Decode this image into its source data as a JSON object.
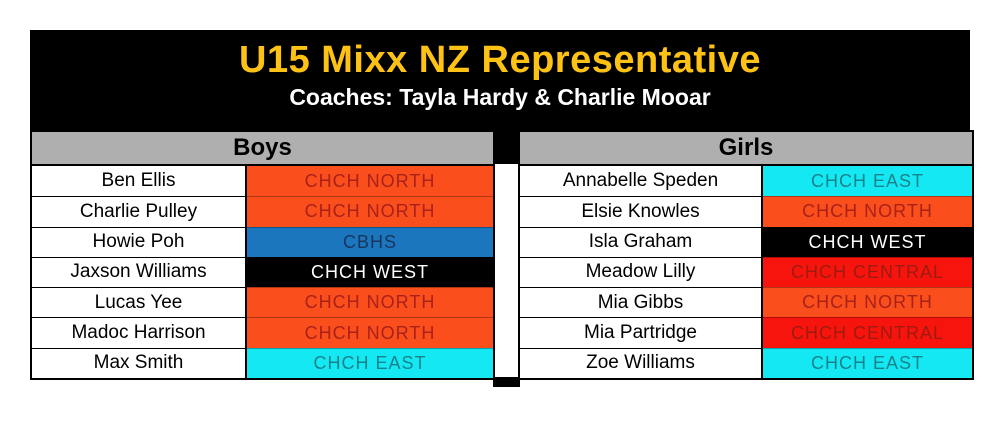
{
  "banner": {
    "title": "U15 Mixx NZ Representative",
    "subtitle": "Coaches: Tayla Hardy & Charlie Mooar"
  },
  "colors": {
    "banner_bg": "#000000",
    "title_text": "#FEC215",
    "subtitle_text": "#FFFFFF",
    "header_bg": "#AFAFAF",
    "header_text": "#000000",
    "name_cell_bg": "#FFFFFF",
    "name_cell_text": "#000000",
    "table_border": "#000000"
  },
  "clubs": {
    "CHCH NORTH": {
      "bg": "#FB4E1D",
      "fg": "#A92119"
    },
    "CBHS": {
      "bg": "#1B76BE",
      "fg": "#17365D"
    },
    "CHCH WEST": {
      "bg": "#000000",
      "fg": "#FFFFFF"
    },
    "CHCH EAST": {
      "bg": "#14E9F3",
      "fg": "#17828C"
    },
    "CHCH CENTRAL": {
      "bg": "#F7140C",
      "fg": "#9E1B12"
    }
  },
  "columns": [
    {
      "header": "Boys",
      "players": [
        {
          "name": "Ben Ellis",
          "club": "CHCH NORTH"
        },
        {
          "name": "Charlie Pulley",
          "club": "CHCH NORTH"
        },
        {
          "name": "Howie Poh",
          "club": "CBHS"
        },
        {
          "name": "Jaxson Williams",
          "club": "CHCH WEST"
        },
        {
          "name": "Lucas Yee",
          "club": "CHCH NORTH"
        },
        {
          "name": "Madoc Harrison",
          "club": "CHCH NORTH"
        },
        {
          "name": "Max Smith",
          "club": "CHCH EAST"
        }
      ]
    },
    {
      "header": "Girls",
      "players": [
        {
          "name": "Annabelle Speden",
          "club": "CHCH EAST"
        },
        {
          "name": "Elsie Knowles",
          "club": "CHCH NORTH"
        },
        {
          "name": "Isla Graham",
          "club": "CHCH WEST"
        },
        {
          "name": "Meadow Lilly",
          "club": "CHCH CENTRAL"
        },
        {
          "name": "Mia Gibbs",
          "club": "CHCH NORTH"
        },
        {
          "name": "Mia Partridge",
          "club": "CHCH CENTRAL"
        },
        {
          "name": "Zoe Williams",
          "club": "CHCH EAST"
        }
      ]
    }
  ]
}
